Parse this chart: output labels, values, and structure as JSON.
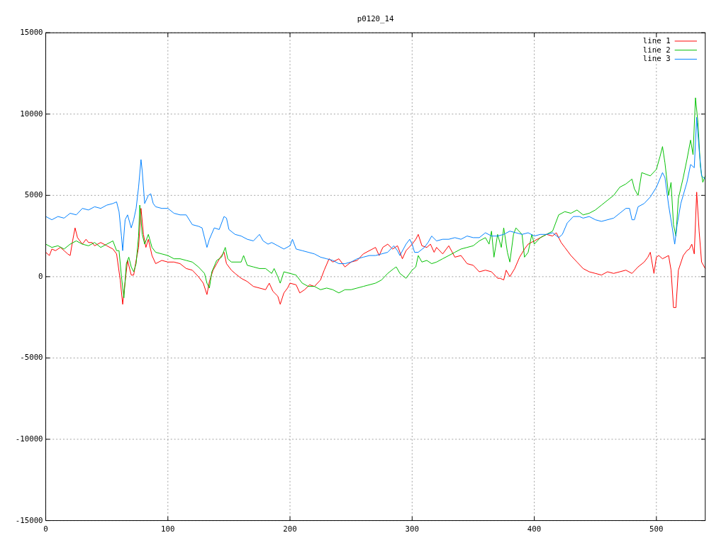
{
  "chart_data": {
    "type": "line",
    "title": "p0120_14",
    "xlim": [
      0,
      540
    ],
    "xticks": [
      0,
      100,
      200,
      300,
      400,
      500
    ],
    "ylim": [
      -15000,
      15000
    ],
    "yticks": [
      -15000,
      -10000,
      -5000,
      0,
      5000,
      10000,
      15000
    ],
    "grid": true,
    "legend": "top right",
    "line_style": "solid",
    "marker": "none",
    "series": [
      {
        "name": "line 1",
        "color": "#ff0000",
        "x": [
          0,
          3,
          5,
          8,
          12,
          15,
          18,
          20,
          22,
          24,
          26,
          30,
          33,
          35,
          38,
          40,
          45,
          50,
          55,
          58,
          61,
          63,
          65,
          67,
          70,
          72,
          74,
          76,
          78,
          80,
          82,
          84,
          87,
          90,
          95,
          100,
          105,
          110,
          115,
          120,
          125,
          129,
          132,
          134,
          137,
          140,
          143,
          146,
          148,
          152,
          155,
          160,
          165,
          170,
          175,
          180,
          183,
          186,
          190,
          192,
          195,
          198,
          200,
          205,
          208,
          212,
          216,
          220,
          225,
          228,
          232,
          235,
          240,
          245,
          250,
          255,
          260,
          265,
          270,
          273,
          276,
          280,
          284,
          288,
          292,
          295,
          300,
          303,
          305,
          308,
          312,
          315,
          318,
          320,
          325,
          330,
          335,
          340,
          345,
          350,
          355,
          360,
          365,
          370,
          372,
          375,
          377,
          380,
          384,
          388,
          392,
          395,
          400,
          405,
          410,
          415,
          418,
          422,
          425,
          430,
          435,
          440,
          445,
          450,
          455,
          460,
          465,
          470,
          475,
          480,
          485,
          490,
          493,
          495,
          498,
          500,
          502,
          505,
          510,
          512,
          514,
          516,
          518,
          522,
          525,
          527,
          529,
          531,
          533,
          535,
          537,
          540
        ],
        "values": [
          1500,
          1300,
          1700,
          1600,
          1800,
          1600,
          1400,
          1300,
          2200,
          3000,
          2400,
          2000,
          2300,
          2100,
          2100,
          1900,
          2100,
          1900,
          1700,
          1400,
          -200,
          -1700,
          -300,
          1000,
          100,
          100,
          1000,
          1800,
          4200,
          2600,
          1800,
          2300,
          1300,
          800,
          1000,
          900,
          900,
          800,
          500,
          400,
          0,
          -400,
          -1100,
          -300,
          400,
          800,
          1200,
          1500,
          800,
          400,
          200,
          -100,
          -300,
          -600,
          -700,
          -800,
          -400,
          -900,
          -1200,
          -1700,
          -1000,
          -700,
          -400,
          -500,
          -1000,
          -800,
          -500,
          -600,
          -200,
          400,
          1100,
          900,
          1100,
          600,
          900,
          1000,
          1400,
          1600,
          1800,
          1300,
          1800,
          2000,
          1700,
          1900,
          1100,
          1600,
          2000,
          2300,
          2600,
          1900,
          1800,
          2000,
          1500,
          1800,
          1400,
          1900,
          1200,
          1300,
          800,
          700,
          300,
          400,
          300,
          -100,
          -100,
          -200,
          400,
          0,
          500,
          1200,
          1700,
          2000,
          2200,
          2400,
          2600,
          2500,
          2700,
          2100,
          1800,
          1300,
          900,
          500,
          300,
          200,
          100,
          300,
          200,
          300,
          400,
          200,
          600,
          900,
          1200,
          1500,
          200,
          1200,
          1300,
          1100,
          1300,
          400,
          -1900,
          -1900,
          400,
          1300,
          1600,
          1700,
          2000,
          1400,
          5200,
          2800,
          900,
          500
        ]
      },
      {
        "name": "line 2",
        "color": "#00c000",
        "x": [
          0,
          5,
          10,
          15,
          20,
          25,
          30,
          35,
          40,
          45,
          50,
          55,
          58,
          60,
          62,
          64,
          66,
          68,
          70,
          72,
          74,
          76,
          77,
          79,
          81,
          84,
          87,
          90,
          95,
          100,
          105,
          110,
          115,
          120,
          125,
          130,
          132,
          134,
          136,
          140,
          144,
          147,
          149,
          152,
          160,
          162,
          165,
          170,
          175,
          180,
          185,
          187,
          190,
          192,
          195,
          200,
          205,
          210,
          215,
          220,
          225,
          230,
          235,
          240,
          245,
          250,
          255,
          260,
          265,
          270,
          275,
          280,
          285,
          287,
          290,
          295,
          300,
          303,
          305,
          308,
          312,
          316,
          320,
          325,
          330,
          335,
          340,
          345,
          350,
          355,
          360,
          363,
          365,
          367,
          370,
          373,
          375,
          378,
          380,
          383,
          385,
          390,
          392,
          395,
          398,
          400,
          405,
          410,
          415,
          420,
          425,
          430,
          435,
          440,
          445,
          450,
          455,
          460,
          465,
          470,
          475,
          480,
          482,
          485,
          488,
          495,
          500,
          503,
          505,
          507,
          510,
          512,
          514,
          516,
          518,
          522,
          525,
          528,
          530,
          532,
          534,
          536,
          538,
          540
        ],
        "values": [
          2000,
          1800,
          1900,
          1700,
          2000,
          2200,
          2000,
          1900,
          2100,
          1800,
          2000,
          2200,
          1600,
          1600,
          0,
          -1300,
          800,
          1200,
          600,
          300,
          800,
          2500,
          4400,
          2600,
          2000,
          2600,
          1800,
          1500,
          1400,
          1300,
          1100,
          1100,
          1000,
          900,
          600,
          200,
          -400,
          -700,
          300,
          1000,
          1200,
          1800,
          1100,
          900,
          900,
          1300,
          700,
          600,
          500,
          500,
          200,
          500,
          0,
          -400,
          300,
          200,
          100,
          -400,
          -600,
          -600,
          -800,
          -700,
          -800,
          -1000,
          -800,
          -800,
          -700,
          -600,
          -500,
          -400,
          -200,
          200,
          500,
          600,
          200,
          -100,
          400,
          600,
          1300,
          900,
          1000,
          800,
          900,
          1100,
          1300,
          1500,
          1700,
          1800,
          1900,
          2200,
          2400,
          2000,
          2800,
          1200,
          2600,
          1800,
          3000,
          1500,
          900,
          2600,
          3000,
          2600,
          1200,
          1500,
          2600,
          2000,
          2400,
          2600,
          2800,
          3800,
          4000,
          3900,
          4100,
          3800,
          3900,
          4100,
          4400,
          4700,
          5000,
          5500,
          5700,
          6000,
          5400,
          5000,
          6400,
          6200,
          6600,
          7400,
          8000,
          7000,
          5000,
          5800,
          3200,
          2500,
          4800,
          6100,
          7200,
          8400,
          7500,
          11000,
          9500,
          6800,
          5800,
          6200
        ]
      },
      {
        "name": "line 3",
        "color": "#0080ff",
        "x": [
          0,
          5,
          10,
          15,
          20,
          25,
          30,
          35,
          40,
          45,
          50,
          55,
          58,
          60,
          62,
          63,
          65,
          67,
          70,
          72,
          74,
          76,
          78,
          79,
          81,
          84,
          86,
          88,
          90,
          95,
          100,
          105,
          110,
          115,
          120,
          125,
          128,
          132,
          134,
          138,
          142,
          146,
          148,
          150,
          155,
          160,
          165,
          170,
          175,
          178,
          182,
          185,
          190,
          195,
          200,
          202,
          205,
          210,
          215,
          220,
          225,
          230,
          235,
          240,
          245,
          250,
          255,
          260,
          265,
          270,
          275,
          280,
          285,
          288,
          290,
          295,
          298,
          300,
          302,
          305,
          310,
          313,
          316,
          320,
          325,
          330,
          335,
          340,
          345,
          350,
          355,
          360,
          365,
          370,
          375,
          380,
          385,
          390,
          395,
          400,
          405,
          410,
          415,
          420,
          423,
          427,
          432,
          437,
          440,
          445,
          450,
          455,
          460,
          465,
          470,
          475,
          478,
          480,
          482,
          485,
          490,
          495,
          500,
          505,
          507,
          510,
          513,
          515,
          517,
          520,
          525,
          528,
          531,
          533,
          535,
          537,
          540
        ],
        "values": [
          3700,
          3500,
          3700,
          3600,
          3900,
          3800,
          4200,
          4100,
          4300,
          4200,
          4400,
          4500,
          4600,
          4000,
          2500,
          1600,
          3500,
          3800,
          3000,
          3500,
          4200,
          5500,
          7200,
          6500,
          4500,
          5000,
          5100,
          4500,
          4300,
          4200,
          4200,
          3900,
          3800,
          3800,
          3200,
          3100,
          3000,
          1800,
          2300,
          3000,
          2900,
          3700,
          3600,
          2900,
          2600,
          2500,
          2300,
          2200,
          2600,
          2200,
          2000,
          2100,
          1900,
          1700,
          1900,
          2300,
          1700,
          1600,
          1500,
          1400,
          1200,
          1100,
          1000,
          800,
          800,
          900,
          1100,
          1200,
          1300,
          1300,
          1400,
          1500,
          1900,
          1600,
          1300,
          2000,
          2300,
          2000,
          1500,
          1500,
          1800,
          2100,
          2500,
          2200,
          2300,
          2300,
          2400,
          2300,
          2500,
          2400,
          2400,
          2700,
          2500,
          2500,
          2600,
          2800,
          2700,
          2600,
          2700,
          2500,
          2600,
          2600,
          2700,
          2400,
          2600,
          3300,
          3700,
          3700,
          3600,
          3700,
          3500,
          3400,
          3500,
          3600,
          3900,
          4200,
          4200,
          3500,
          3500,
          4300,
          4500,
          4900,
          5500,
          6400,
          6100,
          4400,
          3000,
          2000,
          3200,
          4500,
          5800,
          6900,
          6700,
          9800,
          7800,
          6200,
          6000
        ]
      }
    ]
  }
}
